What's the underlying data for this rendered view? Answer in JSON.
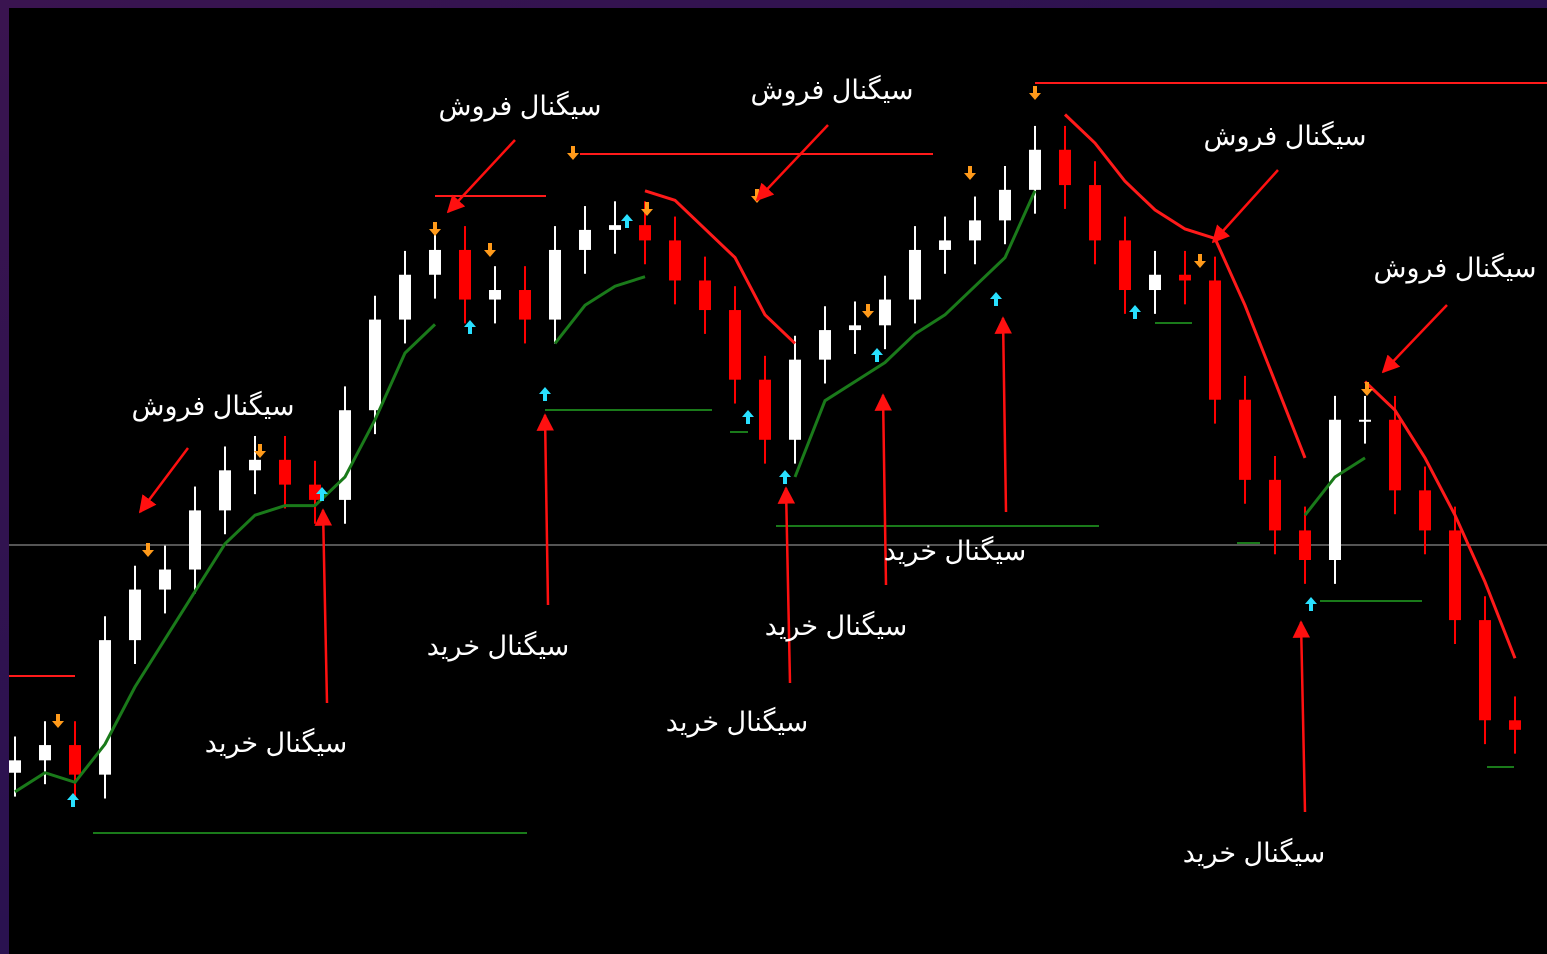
{
  "chart_data": {
    "type": "candlestick",
    "open": [
      19.0,
      20.3,
      21.9,
      18.8,
      32.9,
      38.2,
      40.3,
      46.5,
      50.7,
      51.8,
      49.2,
      47.6,
      57.0,
      66.5,
      71.2,
      73.8,
      68.6,
      69.6,
      66.5,
      73.8,
      75.9,
      76.4,
      74.8,
      70.6,
      67.5,
      60.2,
      53.9,
      62.3,
      65.4,
      65.9,
      68.6,
      73.8,
      74.8,
      76.9,
      80.1,
      84.3,
      80.6,
      74.8,
      69.6,
      71.2,
      70.6,
      58.1,
      49.7,
      44.4,
      41.3,
      56.0,
      56.0,
      48.6,
      44.4,
      35.0,
      24.5
    ],
    "high": [
      22.8,
      24.4,
      24.4,
      35.4,
      40.7,
      42.8,
      49.0,
      53.2,
      54.3,
      54.3,
      51.7,
      59.5,
      69.0,
      73.7,
      76.3,
      76.3,
      72.1,
      72.1,
      76.3,
      78.4,
      78.9,
      78.9,
      77.3,
      73.1,
      70.0,
      62.7,
      64.8,
      67.9,
      68.4,
      71.1,
      76.3,
      77.3,
      79.4,
      82.6,
      86.8,
      86.8,
      83.1,
      77.3,
      73.7,
      73.7,
      73.1,
      60.6,
      52.2,
      46.9,
      58.5,
      58.5,
      58.5,
      51.1,
      46.9,
      37.5,
      27.0
    ],
    "low": [
      16.5,
      17.8,
      16.3,
      16.3,
      30.4,
      35.7,
      37.8,
      44.0,
      48.2,
      46.7,
      45.1,
      45.1,
      54.5,
      64.0,
      68.7,
      66.1,
      66.1,
      64.0,
      64.0,
      71.3,
      73.4,
      72.3,
      68.1,
      65.0,
      57.7,
      51.4,
      51.4,
      59.8,
      62.9,
      63.4,
      66.1,
      71.3,
      72.3,
      74.4,
      77.6,
      78.1,
      72.3,
      67.1,
      67.1,
      68.1,
      55.6,
      47.2,
      41.9,
      38.8,
      38.8,
      53.5,
      46.1,
      41.9,
      32.5,
      22.0,
      21.0
    ],
    "close": [
      20.3,
      21.9,
      18.8,
      32.9,
      38.2,
      40.3,
      46.5,
      50.7,
      51.8,
      49.2,
      47.6,
      57.0,
      66.5,
      71.2,
      73.8,
      68.6,
      69.6,
      66.5,
      73.8,
      75.9,
      76.4,
      74.8,
      70.6,
      67.5,
      60.2,
      53.9,
      62.3,
      65.4,
      65.9,
      68.6,
      73.8,
      74.8,
      76.9,
      80.1,
      84.3,
      80.6,
      74.8,
      69.6,
      71.2,
      70.6,
      58.1,
      49.7,
      44.4,
      41.3,
      56.0,
      56.0,
      48.6,
      44.4,
      35.0,
      24.5,
      23.5
    ],
    "up_color": "#ffffff",
    "down_color": "#ff0000",
    "series": [
      {
        "color": "#1a7a1a",
        "values": [
          17,
          19,
          18,
          22,
          28,
          33,
          38,
          43,
          46,
          47,
          47,
          50,
          56,
          63,
          66,
          null,
          null,
          null,
          64,
          68,
          70,
          71,
          null,
          null,
          null,
          null,
          50,
          58,
          60,
          62,
          65,
          67,
          70,
          73,
          80,
          null,
          null,
          null,
          null,
          null,
          null,
          null,
          null,
          46,
          50,
          52,
          null,
          null,
          null,
          null,
          null
        ]
      },
      {
        "color": "#ff1a1a",
        "values": [
          null,
          null,
          null,
          null,
          null,
          null,
          null,
          null,
          null,
          null,
          null,
          null,
          null,
          null,
          null,
          null,
          null,
          null,
          null,
          null,
          null,
          80,
          79,
          76,
          73,
          67,
          64,
          null,
          null,
          null,
          null,
          null,
          null,
          null,
          null,
          88,
          85,
          81,
          78,
          76,
          75,
          68,
          60,
          52,
          null,
          60,
          57,
          52,
          46,
          39,
          31
        ]
      }
    ],
    "ylim": [
      0,
      100
    ],
    "annotations": [
      "سيگنال فروش",
      "سيگنال فروش",
      "سيگنال فروش",
      "سيگنال فروش",
      "سيگنال فروش",
      "سيگنال خريد",
      "سيگنال خريد",
      "سيگنال خريد",
      "سيگنال خريد",
      "سيگنال خريد",
      "سيگنال خريد"
    ]
  }
}
